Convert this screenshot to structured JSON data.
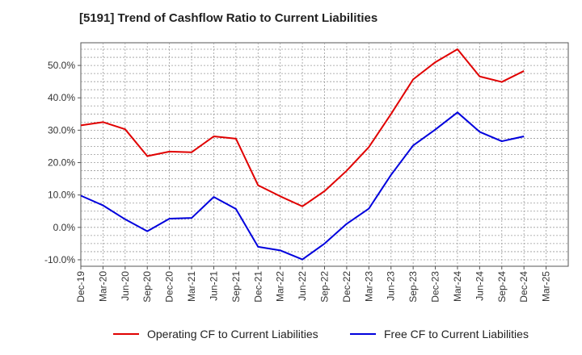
{
  "title": "[5191]  Trend of Cashflow Ratio to Current Liabilities",
  "chart_data": {
    "type": "line",
    "title": "[5191]  Trend of Cashflow Ratio to Current Liabilities",
    "xlabel": "",
    "ylabel": "",
    "categories": [
      "Dec-19",
      "Mar-20",
      "Jun-20",
      "Sep-20",
      "Dec-20",
      "Mar-21",
      "Jun-21",
      "Sep-21",
      "Dec-21",
      "Mar-22",
      "Jun-22",
      "Sep-22",
      "Dec-22",
      "Mar-23",
      "Jun-23",
      "Sep-23",
      "Dec-23",
      "Mar-24",
      "Jun-24",
      "Sep-24",
      "Dec-24",
      "Mar-25"
    ],
    "ylim": [
      -12,
      57
    ],
    "yticks": [
      -10,
      0,
      10,
      20,
      30,
      40,
      50
    ],
    "ytick_labels": [
      "-10.0%",
      "0.0%",
      "10.0%",
      "20.0%",
      "30.0%",
      "40.0%",
      "50.0%"
    ],
    "grid": true,
    "legend_position": "bottom",
    "series": [
      {
        "name": "Operating CF to Current Liabilities",
        "color": "#e00000",
        "values": [
          31.5,
          32.5,
          30.3,
          22.0,
          23.4,
          23.2,
          28.1,
          27.4,
          13.0,
          9.6,
          6.5,
          11.2,
          17.5,
          24.8,
          35.0,
          45.7,
          51.0,
          55.0,
          46.6,
          44.9,
          48.3,
          null
        ]
      },
      {
        "name": "Free CF to Current Liabilities",
        "color": "#0000dd",
        "values": [
          9.8,
          6.8,
          2.5,
          -1.2,
          2.7,
          2.9,
          9.4,
          5.7,
          -6.0,
          -7.1,
          -9.9,
          -5.0,
          1.1,
          5.8,
          16.2,
          25.3,
          30.2,
          35.5,
          29.5,
          26.6,
          28.1,
          null
        ]
      }
    ]
  }
}
